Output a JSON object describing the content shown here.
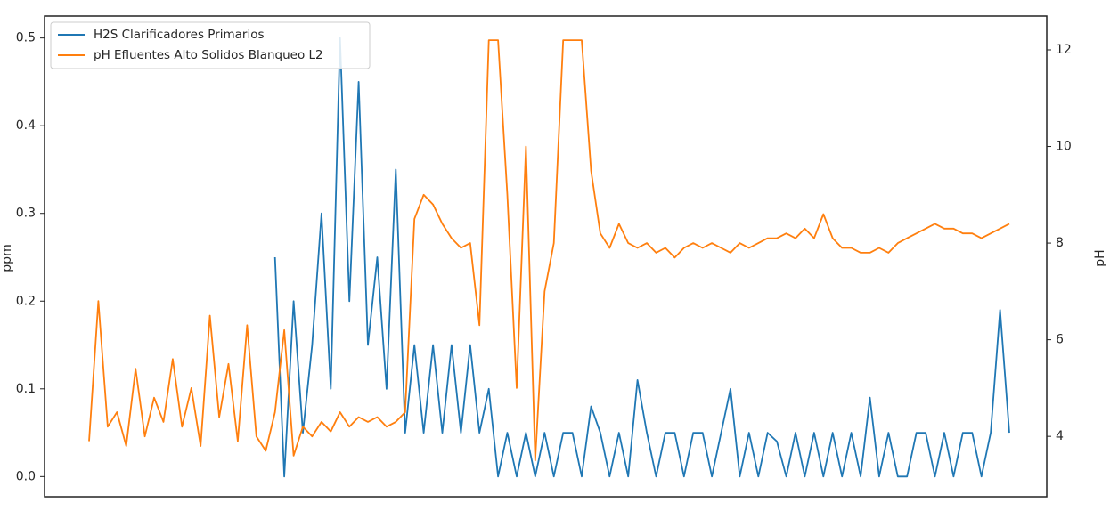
{
  "chart_data": {
    "type": "line",
    "ylabel": "ppm",
    "y2label": "pH",
    "ylim": [
      -0.023,
      0.525
    ],
    "yticks": [
      {
        "value": 0,
        "label": "0.0"
      },
      0.1,
      0.2,
      0.3,
      0.4,
      0.5
    ],
    "y2lim": [
      2.75,
      12.7
    ],
    "y2ticks": [
      4,
      6,
      8,
      10,
      12
    ],
    "legend": "upper left",
    "series": [
      {
        "name": "H2S Clarificadores Primarios",
        "color": "#1f77b4",
        "values": [
          null,
          null,
          null,
          null,
          null,
          null,
          null,
          null,
          null,
          null,
          null,
          null,
          null,
          null,
          null,
          null,
          null,
          null,
          null,
          null,
          0.25,
          0.0,
          0.2,
          0.05,
          0.15,
          0.3,
          0.1,
          0.5,
          0.2,
          0.45,
          0.15,
          0.25,
          0.1,
          0.35,
          0.05,
          0.15,
          0.05,
          0.15,
          0.05,
          0.15,
          0.05,
          0.15,
          0.05,
          0.1,
          0.0,
          0.05,
          0.0,
          0.05,
          0.0,
          0.05,
          0.0,
          0.05,
          0.05,
          0.0,
          0.08,
          0.05,
          0.0,
          0.05,
          0.0,
          0.11,
          0.05,
          0.0,
          0.05,
          0.05,
          0.0,
          0.05,
          0.05,
          0.0,
          0.05,
          0.1,
          0.0,
          0.05,
          0.0,
          0.05,
          0.04,
          0.0,
          0.05,
          0.0,
          0.05,
          0.0,
          0.05,
          0.0,
          0.05,
          0.0,
          0.09,
          0.0,
          0.05,
          0.0,
          0.0,
          0.05,
          0.05,
          0.0,
          0.05,
          0.0,
          0.05,
          0.05,
          0.0,
          0.05,
          0.19,
          0.05
        ]
      },
      {
        "name": "pH Efluentes Alto Solidos Blanqueo L2",
        "color": "#ff7f0e",
        "axis": "y2",
        "values": [
          3.9,
          6.8,
          4.2,
          4.5,
          3.8,
          5.4,
          4.0,
          4.8,
          4.3,
          5.6,
          4.2,
          5.0,
          3.8,
          6.5,
          4.4,
          5.5,
          3.9,
          6.3,
          4.0,
          3.7,
          4.5,
          6.2,
          3.6,
          4.2,
          4.0,
          4.3,
          4.1,
          4.5,
          4.2,
          4.4,
          4.3,
          4.4,
          4.2,
          4.3,
          4.5,
          8.5,
          9.0,
          8.8,
          8.4,
          8.1,
          7.9,
          8.0,
          6.3,
          12.2,
          12.2,
          9.0,
          5.0,
          10.0,
          3.5,
          7.0,
          8.0,
          12.2,
          12.2,
          12.2,
          9.5,
          8.2,
          7.9,
          8.4,
          8.0,
          7.9,
          8.0,
          7.8,
          7.9,
          7.7,
          7.9,
          8.0,
          7.9,
          8.0,
          7.9,
          7.8,
          8.0,
          7.9,
          8.0,
          8.1,
          8.1,
          8.2,
          8.1,
          8.3,
          8.1,
          8.6,
          8.1,
          7.9,
          7.9,
          7.8,
          7.8,
          7.9,
          7.8,
          8.0,
          8.1,
          8.2,
          8.3,
          8.4,
          8.3,
          8.3,
          8.2,
          8.2,
          8.1,
          8.2,
          8.3,
          8.4
        ]
      }
    ]
  }
}
